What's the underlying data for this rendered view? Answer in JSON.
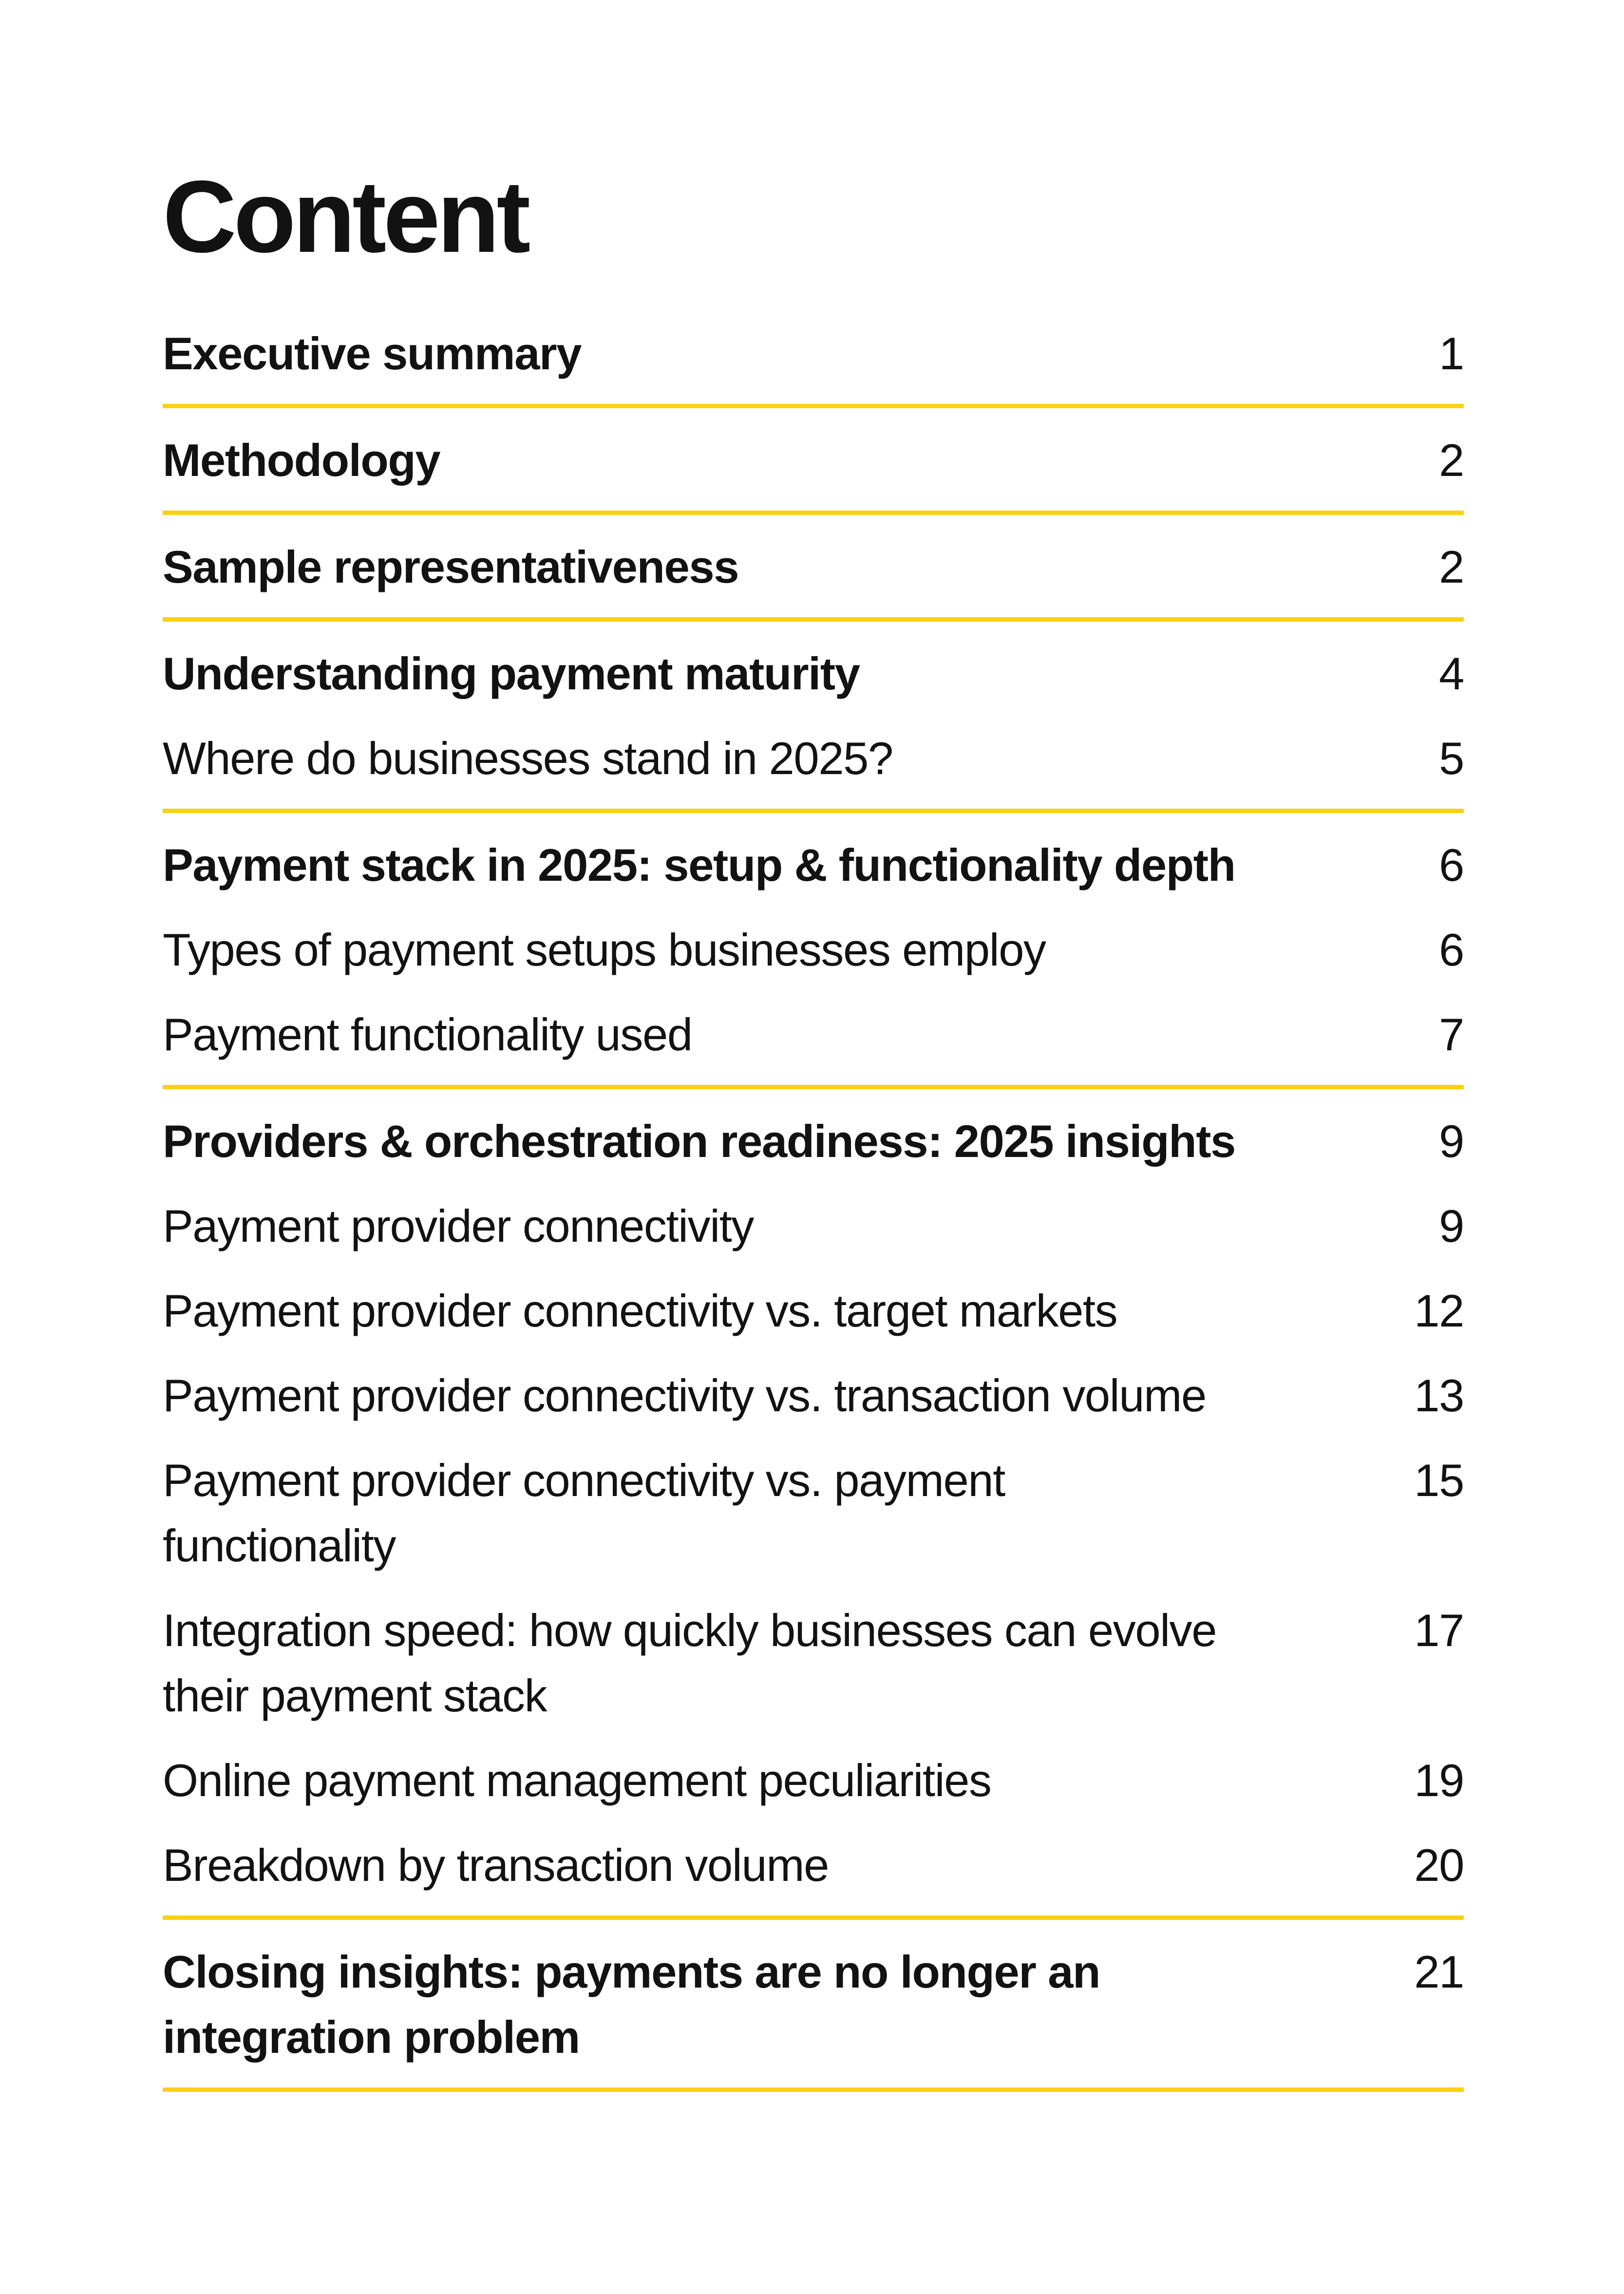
{
  "page": {
    "title": "Content"
  },
  "theme": {
    "background": "#FFFFFF",
    "text_color": "#121212",
    "accent_yellow": "#FCD013"
  },
  "toc": {
    "groups": [
      {
        "items": [
          {
            "label": "Executive summary",
            "page": "1"
          }
        ]
      },
      {
        "items": [
          {
            "label": "Methodology",
            "page": "2"
          }
        ]
      },
      {
        "items": [
          {
            "label": "Sample representativeness",
            "page": "2"
          }
        ]
      },
      {
        "items": [
          {
            "label": "Understanding payment maturity",
            "page": "4"
          },
          {
            "label": "Where do businesses stand in 2025?",
            "page": "5"
          }
        ]
      },
      {
        "items": [
          {
            "label": "Payment stack in 2025: setup & functionality depth",
            "page": "6"
          },
          {
            "label": "Types of payment setups businesses employ",
            "page": "6"
          },
          {
            "label": "Payment functionality used",
            "page": "7"
          }
        ]
      },
      {
        "items": [
          {
            "label": "Providers & orchestration readiness: 2025 insights",
            "page": "9"
          },
          {
            "label": "Payment provider connectivity",
            "page": "9"
          },
          {
            "label": "Payment provider connectivity vs. target markets",
            "page": "12"
          },
          {
            "label": "Payment provider connectivity vs. transaction volume",
            "page": "13"
          },
          {
            "label": "Payment provider connectivity vs. payment\nfunctionality",
            "page": "15"
          },
          {
            "label": "Integration speed: how quickly businesses can evolve\ntheir payment stack",
            "page": "17"
          },
          {
            "label": "Online payment management peculiarities",
            "page": "19"
          },
          {
            "label": "Breakdown by transaction volume",
            "page": "20"
          }
        ]
      },
      {
        "items": [
          {
            "label": "Closing insights: payments are no longer an\nintegration problem",
            "page": "21"
          }
        ]
      }
    ]
  }
}
